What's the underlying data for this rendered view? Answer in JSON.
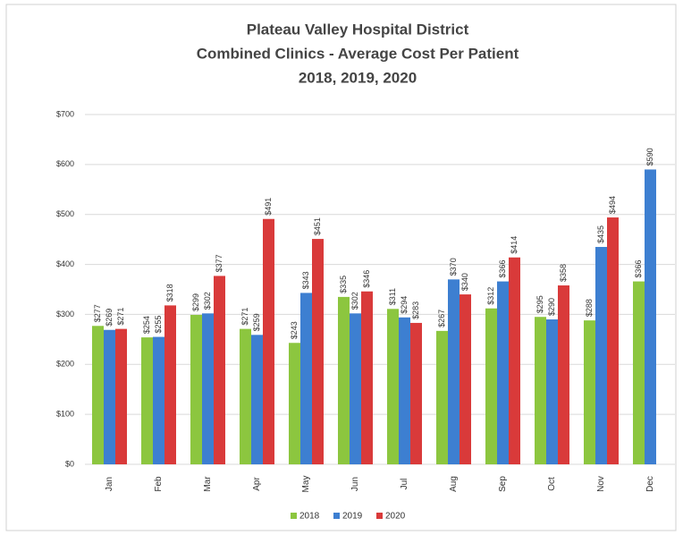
{
  "chart_data": {
    "type": "bar",
    "title": [
      "Plateau Valley Hospital District",
      "Combined Clinics - Average Cost Per Patient",
      "2018, 2019, 2020"
    ],
    "categories": [
      "Jan",
      "Feb",
      "Mar",
      "Apr",
      "May",
      "Jun",
      "Jul",
      "Aug",
      "Sep",
      "Oct",
      "Nov",
      "Dec"
    ],
    "series": [
      {
        "name": "2018",
        "color": "#8cc63f",
        "values": [
          277,
          254,
          299,
          271,
          243,
          335,
          311,
          267,
          312,
          295,
          288,
          366
        ],
        "value_labels": [
          "$277",
          "$254",
          "$299",
          "$271",
          "$243",
          "$335",
          "$311",
          "$267",
          "$312",
          "$295",
          "$288",
          "$366"
        ]
      },
      {
        "name": "2019",
        "color": "#3d7fd1",
        "values": [
          269,
          255,
          302,
          259,
          343,
          302,
          294,
          370,
          366,
          290,
          435,
          590
        ],
        "value_labels": [
          "$269",
          "$255",
          "$302",
          "$259",
          "$343",
          "$302",
          "$294",
          "$370",
          "$366",
          "$290",
          "$435",
          "$590"
        ]
      },
      {
        "name": "2020",
        "color": "#d93a3a",
        "values": [
          271,
          318,
          377,
          491,
          451,
          346,
          283,
          340,
          414,
          358,
          494,
          null
        ],
        "value_labels": [
          "$271",
          "$318",
          "$377",
          "$491",
          "$451",
          "$346",
          "$283",
          "$340",
          "$414",
          "$358",
          "$494",
          null
        ]
      }
    ],
    "ylim": [
      0,
      700
    ],
    "yticks": [
      {
        "value": 0,
        "label": "$0"
      },
      {
        "value": 100,
        "label": "$100"
      },
      {
        "value": 200,
        "label": "$200"
      },
      {
        "value": 300,
        "label": "$300"
      },
      {
        "value": 400,
        "label": "$400"
      },
      {
        "value": 500,
        "label": "$500"
      },
      {
        "value": 600,
        "label": "$600"
      },
      {
        "value": 700,
        "label": "$700"
      }
    ],
    "grid": true,
    "legend": "bottom"
  }
}
